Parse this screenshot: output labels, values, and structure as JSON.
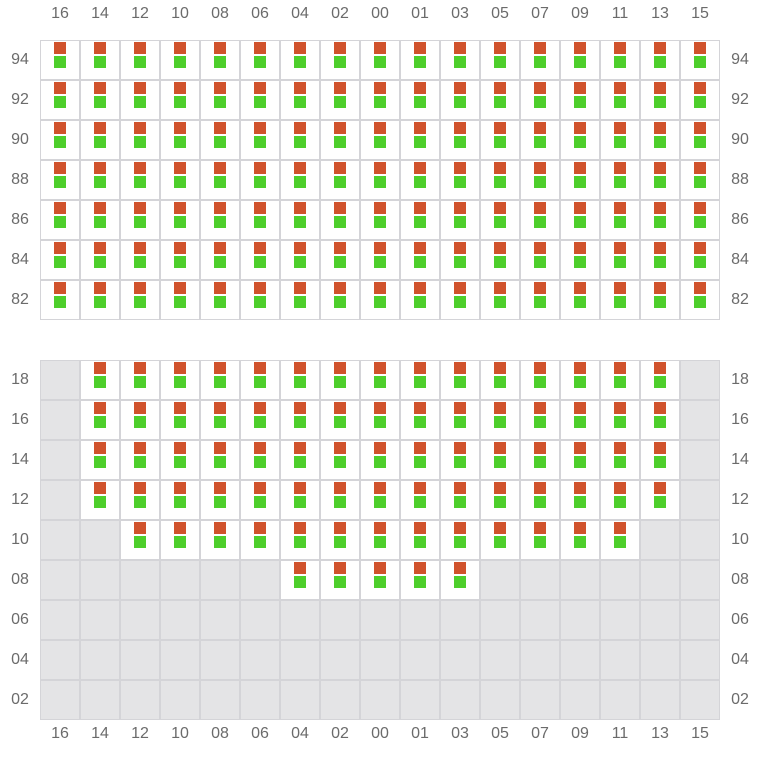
{
  "columns": [
    "16",
    "14",
    "12",
    "10",
    "08",
    "06",
    "04",
    "02",
    "00",
    "01",
    "03",
    "05",
    "07",
    "09",
    "11",
    "13",
    "15"
  ],
  "colors": {
    "top_marker": "#d0522c",
    "bottom_marker": "#4ecf2c",
    "available_bg": "#ffffff",
    "unavailable_bg": "#e4e4e6",
    "grid": "#d4d4d8"
  },
  "upper_section": {
    "rows": [
      {
        "label": "94",
        "available": "all"
      },
      {
        "label": "92",
        "available": "all"
      },
      {
        "label": "90",
        "available": "all"
      },
      {
        "label": "88",
        "available": "all"
      },
      {
        "label": "86",
        "available": "all"
      },
      {
        "label": "84",
        "available": "all"
      },
      {
        "label": "82",
        "available": "all"
      }
    ]
  },
  "lower_section": {
    "rows": [
      {
        "label": "18",
        "available": [
          "14",
          "12",
          "10",
          "08",
          "06",
          "04",
          "02",
          "00",
          "01",
          "03",
          "05",
          "07",
          "09",
          "11",
          "13"
        ]
      },
      {
        "label": "16",
        "available": [
          "14",
          "12",
          "10",
          "08",
          "06",
          "04",
          "02",
          "00",
          "01",
          "03",
          "05",
          "07",
          "09",
          "11",
          "13"
        ]
      },
      {
        "label": "14",
        "available": [
          "14",
          "12",
          "10",
          "08",
          "06",
          "04",
          "02",
          "00",
          "01",
          "03",
          "05",
          "07",
          "09",
          "11",
          "13"
        ]
      },
      {
        "label": "12",
        "available": [
          "14",
          "12",
          "10",
          "08",
          "06",
          "04",
          "02",
          "00",
          "01",
          "03",
          "05",
          "07",
          "09",
          "11",
          "13"
        ]
      },
      {
        "label": "10",
        "available": [
          "12",
          "10",
          "08",
          "06",
          "04",
          "02",
          "00",
          "01",
          "03",
          "05",
          "07",
          "09",
          "11"
        ]
      },
      {
        "label": "08",
        "available": [
          "04",
          "02",
          "00",
          "01",
          "03"
        ]
      },
      {
        "label": "06",
        "available": []
      },
      {
        "label": "04",
        "available": []
      },
      {
        "label": "02",
        "available": []
      }
    ]
  }
}
